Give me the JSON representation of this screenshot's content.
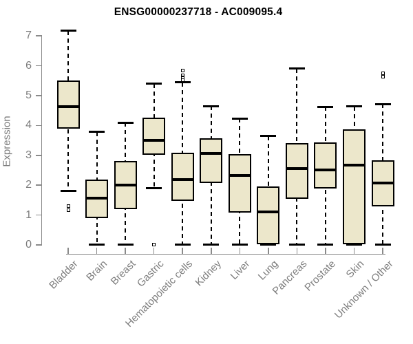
{
  "chart_data": {
    "type": "boxplot",
    "title": "ENSG00000237718 - AC009095.4",
    "xlabel": "",
    "ylabel": "Expression",
    "ylim": [
      0,
      7
    ],
    "yticks": [
      0,
      1,
      2,
      3,
      4,
      5,
      6,
      7
    ],
    "grid": false,
    "legend_position": "none",
    "categories": [
      "Bladder",
      "Brain",
      "Breast",
      "Gastric",
      "Hematopoietic cells",
      "Kidney",
      "Liver",
      "Lung",
      "Pancreas",
      "Prostate",
      "Skin",
      "Unknown / Other"
    ],
    "series": [
      {
        "name": "Bladder",
        "whisker_low": 1.82,
        "q1": 3.9,
        "median": 4.62,
        "q3": 5.5,
        "whisker_high": 7.17,
        "outliers": [
          1.3,
          1.16
        ]
      },
      {
        "name": "Brain",
        "whisker_low": 0.02,
        "q1": 0.9,
        "median": 1.57,
        "q3": 2.18,
        "whisker_high": 3.78,
        "outliers": []
      },
      {
        "name": "Breast",
        "whisker_low": 0.02,
        "q1": 1.19,
        "median": 2.0,
        "q3": 2.8,
        "whisker_high": 4.1,
        "outliers": []
      },
      {
        "name": "Gastric",
        "whisker_low": 1.89,
        "q1": 3.02,
        "median": 3.5,
        "q3": 4.27,
        "whisker_high": 5.4,
        "outliers": [
          0.02
        ]
      },
      {
        "name": "Hematopoietic cells",
        "whisker_low": 0.02,
        "q1": 1.48,
        "median": 2.2,
        "q3": 3.08,
        "whisker_high": 5.44,
        "outliers": [
          5.85,
          5.68,
          5.6,
          5.52
        ]
      },
      {
        "name": "Kidney",
        "whisker_low": 0.02,
        "q1": 2.08,
        "median": 3.07,
        "q3": 3.58,
        "whisker_high": 4.65,
        "outliers": []
      },
      {
        "name": "Liver",
        "whisker_low": 0.02,
        "q1": 1.08,
        "median": 2.32,
        "q3": 3.05,
        "whisker_high": 4.23,
        "outliers": []
      },
      {
        "name": "Lung",
        "whisker_low": 0.02,
        "q1": 0.02,
        "median": 1.1,
        "q3": 1.97,
        "whisker_high": 3.65,
        "outliers": []
      },
      {
        "name": "Pancreas",
        "whisker_low": 0.02,
        "q1": 1.55,
        "median": 2.55,
        "q3": 3.42,
        "whisker_high": 5.9,
        "outliers": []
      },
      {
        "name": "Prostate",
        "whisker_low": 0.02,
        "q1": 1.9,
        "median": 2.52,
        "q3": 3.44,
        "whisker_high": 4.62,
        "outliers": []
      },
      {
        "name": "Skin",
        "whisker_low": 0.02,
        "q1": 0.02,
        "median": 2.68,
        "q3": 3.86,
        "whisker_high": 4.64,
        "outliers": []
      },
      {
        "name": "Unknown / Other",
        "whisker_low": 0.02,
        "q1": 1.28,
        "median": 2.07,
        "q3": 2.83,
        "whisker_high": 4.72,
        "outliers": [
          5.75,
          5.63
        ]
      }
    ]
  },
  "colors": {
    "box_fill": "#ECE7CB",
    "box_border": "#000000",
    "median": "#000000",
    "whisker": "#000000",
    "axis": "#8A8A8A",
    "tick_label": "#7D7D7D",
    "title": "#000000",
    "background": "#FFFFFF"
  }
}
